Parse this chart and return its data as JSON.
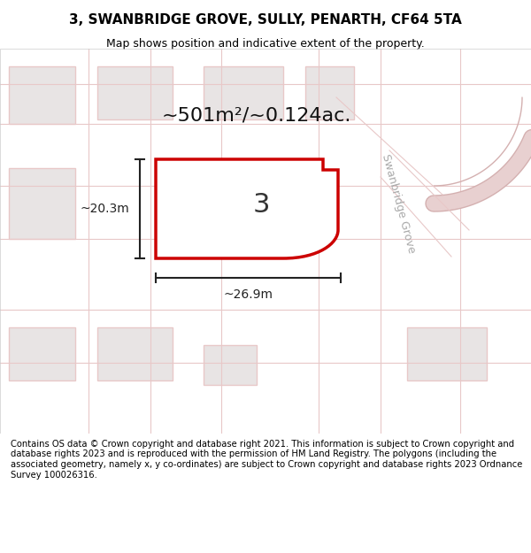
{
  "title": "3, SWANBRIDGE GROVE, SULLY, PENARTH, CF64 5TA",
  "subtitle": "Map shows position and indicative extent of the property.",
  "footer": "Contains OS data © Crown copyright and database right 2021. This information is subject to Crown copyright and database rights 2023 and is reproduced with the permission of HM Land Registry. The polygons (including the associated geometry, namely x, y co-ordinates) are subject to Crown copyright and database rights 2023 Ordnance Survey 100026316.",
  "area_label": "~501m²/~0.124ac.",
  "height_label": "~20.3m",
  "width_label": "~26.9m",
  "number_label": "3",
  "street_label": "Swanbridge Grove",
  "bg_color": "#f0eeee",
  "map_bg": "#f5f3f3",
  "plot_fill": "#ffffff",
  "plot_stroke": "#cc0000",
  "building_fill": "#e8e4e4",
  "road_color": "#e8c8c8",
  "dim_color": "#222222",
  "title_fontsize": 11,
  "subtitle_fontsize": 9
}
